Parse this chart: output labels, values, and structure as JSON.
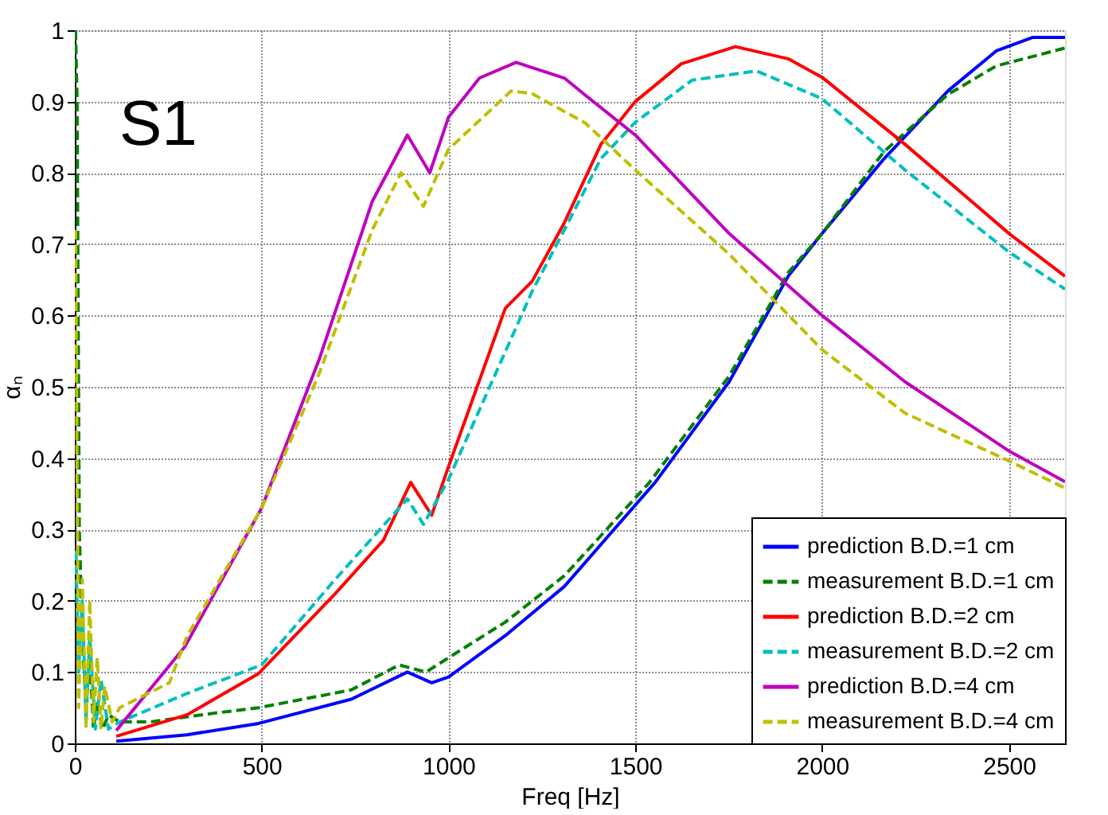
{
  "chart_data": {
    "type": "line",
    "xlabel": "Freq [Hz]",
    "ylabel": "αₙ",
    "annotations": [
      "S1"
    ],
    "xlim": [
      0,
      2650
    ],
    "xticks": [
      0,
      500,
      1000,
      1500,
      2000,
      2500
    ],
    "ylim": [
      0,
      1
    ],
    "yticks": [
      0,
      0.1,
      0.2,
      0.3,
      0.4,
      0.5,
      0.6,
      0.7,
      0.8,
      0.9,
      1
    ],
    "grid": true,
    "legend": "bottom right",
    "marker": "none",
    "series": [
      {
        "name": "prediction B.D.=1 cm",
        "color": "#0000ff",
        "line_style": "solid",
        "x": [
          111,
          300,
          492,
          740,
          890,
          955,
          1000,
          1152,
          1310,
          1553,
          1751,
          1909,
          2000,
          2166,
          2337,
          2466,
          2564,
          2650
        ],
        "values": [
          0.003,
          0.012,
          0.028,
          0.062,
          0.1,
          0.085,
          0.093,
          0.151,
          0.22,
          0.366,
          0.507,
          0.655,
          0.715,
          0.82,
          0.915,
          0.971,
          0.99,
          0.99
        ]
      },
      {
        "name": "measurement B.D.=1 cm",
        "color": "#008000",
        "line_style": "dashed",
        "x": [
          2,
          6,
          12,
          20,
          30,
          40,
          50,
          60,
          75,
          90,
          120,
          200,
          368,
          492,
          740,
          868,
          940,
          1000,
          1152,
          1310,
          1538,
          1751,
          1909,
          2000,
          2166,
          2337,
          2466,
          2650
        ],
        "values": [
          1.0,
          0.9,
          0.3,
          0.15,
          0.05,
          0.12,
          0.02,
          0.06,
          0.02,
          0.04,
          0.03,
          0.03,
          0.042,
          0.05,
          0.075,
          0.11,
          0.1,
          0.12,
          0.17,
          0.235,
          0.366,
          0.515,
          0.66,
          0.715,
          0.83,
          0.91,
          0.95,
          0.975
        ]
      },
      {
        "name": "prediction B.D.=2 cm",
        "color": "#ff0000",
        "line_style": "solid",
        "x": [
          111,
          300,
          492,
          697,
          826,
          899,
          955,
          1000,
          1152,
          1224,
          1310,
          1408,
          1500,
          1623,
          1768,
          1909,
          2000,
          2222,
          2500,
          2650
        ],
        "values": [
          0.01,
          0.04,
          0.098,
          0.21,
          0.285,
          0.366,
          0.32,
          0.388,
          0.61,
          0.648,
          0.73,
          0.84,
          0.9,
          0.953,
          0.977,
          0.96,
          0.934,
          0.84,
          0.715,
          0.655
        ]
      },
      {
        "name": "measurement B.D.=2 cm",
        "color": "#00bfbf",
        "line_style": "dashed",
        "x": [
          3,
          10,
          20,
          30,
          40,
          55,
          70,
          90,
          120,
          300,
          500,
          697,
          890,
          933,
          1000,
          1224,
          1310,
          1408,
          1500,
          1652,
          1824,
          2000,
          2222,
          2500,
          2650
        ],
        "values": [
          0.27,
          0.1,
          0.2,
          0.03,
          0.15,
          0.02,
          0.09,
          0.02,
          0.03,
          0.07,
          0.11,
          0.23,
          0.343,
          0.307,
          0.37,
          0.634,
          0.72,
          0.82,
          0.871,
          0.93,
          0.943,
          0.904,
          0.804,
          0.689,
          0.637
        ]
      },
      {
        "name": "prediction B.D.=4 cm",
        "color": "#bf00bf",
        "line_style": "solid",
        "x": [
          111,
          295,
          500,
          655,
          796,
          890,
          950,
          1000,
          1083,
          1181,
          1310,
          1366,
          1500,
          1751,
          2000,
          2222,
          2500,
          2650
        ],
        "values": [
          0.018,
          0.136,
          0.33,
          0.54,
          0.76,
          0.853,
          0.8,
          0.878,
          0.933,
          0.955,
          0.933,
          0.909,
          0.853,
          0.715,
          0.6,
          0.507,
          0.41,
          0.367
        ]
      },
      {
        "name": "measurement B.D.=4 cm",
        "color": "#bfbf00",
        "line_style": "dashed",
        "x": [
          2,
          10,
          20,
          30,
          40,
          50,
          60,
          70,
          80,
          100,
          120,
          253,
          300,
          500,
          655,
          796,
          873,
          933,
          1000,
          1168,
          1224,
          1366,
          1500,
          1751,
          2000,
          2222,
          2500,
          2650
        ],
        "values": [
          0.72,
          0.05,
          0.23,
          0.02,
          0.2,
          0.03,
          0.12,
          0.02,
          0.08,
          0.03,
          0.05,
          0.085,
          0.15,
          0.33,
          0.52,
          0.72,
          0.8,
          0.753,
          0.833,
          0.915,
          0.911,
          0.87,
          0.804,
          0.686,
          0.552,
          0.463,
          0.396,
          0.358
        ]
      }
    ]
  }
}
